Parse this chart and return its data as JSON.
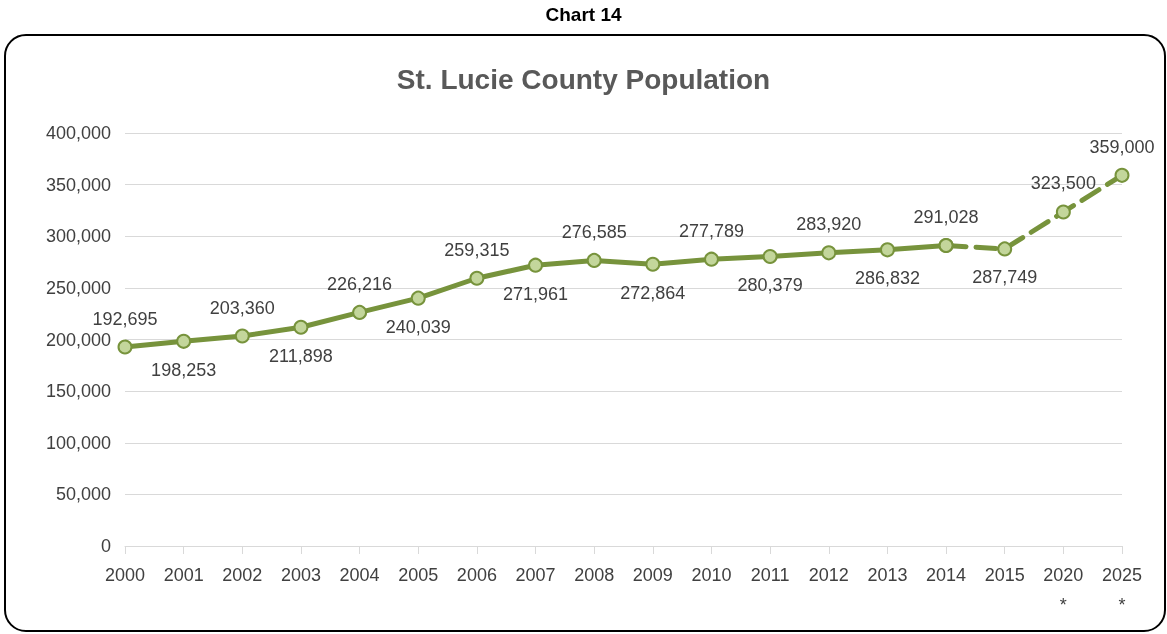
{
  "chart_data": {
    "type": "line",
    "title": "St. Lucie County Population",
    "annotations": [
      "Chart 14"
    ],
    "categories": [
      "2000",
      "2001",
      "2002",
      "2003",
      "2004",
      "2005",
      "2006",
      "2007",
      "2008",
      "2009",
      "2010",
      "2011",
      "2012",
      "2013",
      "2014",
      "2015",
      "2020\n*",
      "2025\n*"
    ],
    "series": [
      {
        "color": "#77933c",
        "line_style": "solid",
        "values": [
          192695,
          198253,
          203360,
          211898,
          226216,
          240039,
          259315,
          271961,
          276585,
          272864,
          277789,
          280379,
          283920,
          286832,
          291028,
          null,
          null,
          null
        ],
        "value_labels": [
          "192,695",
          "198,253",
          "203,360",
          "211,898",
          "226,216",
          "240,039",
          "259,315",
          "271,961",
          "276,585",
          "272,864",
          "277,789",
          "280,379",
          "283,920",
          "286,832",
          "291,028",
          null,
          null,
          null
        ]
      },
      {
        "color": "#77933c",
        "line_style": "dashed",
        "values": [
          null,
          null,
          null,
          null,
          null,
          null,
          null,
          null,
          null,
          null,
          null,
          null,
          null,
          null,
          291028,
          287749,
          323500,
          359000
        ],
        "value_labels": [
          null,
          null,
          null,
          null,
          null,
          null,
          null,
          null,
          null,
          null,
          null,
          null,
          null,
          null,
          null,
          "287,749",
          "323,500",
          "359,000"
        ]
      }
    ],
    "ylim": [
      0,
      400000
    ],
    "yticks": [
      0,
      {
        "value": 50000,
        "label": "50,000"
      },
      {
        "value": 100000,
        "label": "100,000"
      },
      {
        "value": 150000,
        "label": "150,000"
      },
      {
        "value": 200000,
        "label": "200,000"
      },
      {
        "value": 250000,
        "label": "250,000"
      },
      {
        "value": 300000,
        "label": "300,000"
      },
      {
        "value": 350000,
        "label": "350,000"
      },
      {
        "value": 400000,
        "label": "400,000"
      }
    ],
    "grid": "y",
    "marker": "circle"
  }
}
